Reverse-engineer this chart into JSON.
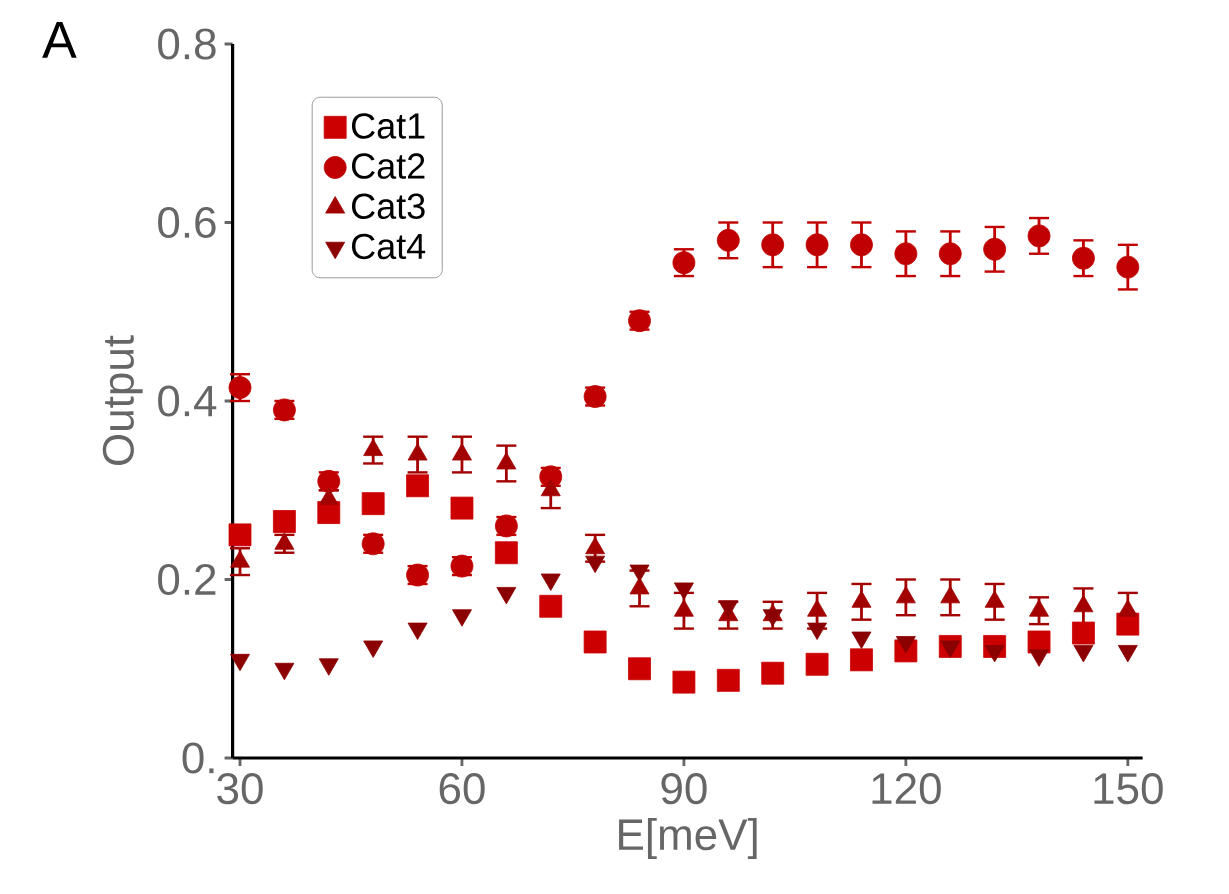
{
  "chart_data": {
    "type": "scatter",
    "annotations": [
      "A"
    ],
    "xlabel": "E[meV]",
    "ylabel": "Output",
    "x": [
      30,
      36,
      42,
      48,
      54,
      60,
      66,
      72,
      78,
      84,
      90,
      96,
      102,
      108,
      114,
      120,
      126,
      132,
      138,
      144,
      150
    ],
    "xlim": [
      29,
      152
    ],
    "ylim": [
      0,
      0.8
    ],
    "xticks": [
      30,
      60,
      90,
      120,
      150
    ],
    "yticks": [
      {
        "value": 0,
        "label": "0."
      },
      0.2,
      0.4,
      0.6,
      0.8
    ],
    "grid": false,
    "legend": "top left",
    "series": [
      {
        "name": "Cat1",
        "color": "#cc0000",
        "marker": "square",
        "values": [
          0.25,
          0.265,
          0.275,
          0.285,
          0.305,
          0.28,
          0.23,
          0.17,
          0.13,
          0.1,
          0.085,
          0.087,
          0.095,
          0.105,
          0.11,
          0.12,
          0.125,
          0.125,
          0.13,
          0.14,
          0.15
        ]
      },
      {
        "name": "Cat2",
        "color": "#c00000",
        "marker": "circle",
        "values": [
          0.415,
          0.39,
          0.31,
          0.24,
          0.205,
          0.215,
          0.26,
          0.315,
          0.405,
          0.49,
          0.555,
          0.58,
          0.575,
          0.575,
          0.575,
          0.565,
          0.565,
          0.57,
          0.585,
          0.56,
          0.55
        ],
        "errors": [
          0.015,
          0.01,
          0.01,
          0.01,
          0.01,
          0.01,
          0.01,
          0.01,
          0.01,
          0.01,
          0.015,
          0.02,
          0.025,
          0.025,
          0.025,
          0.025,
          0.025,
          0.025,
          0.02,
          0.02,
          0.025
        ]
      },
      {
        "name": "Cat3",
        "color": "#a30000",
        "marker": "triangle",
        "values": [
          0.22,
          0.24,
          0.29,
          0.345,
          0.34,
          0.34,
          0.33,
          0.3,
          0.235,
          0.19,
          0.165,
          0.16,
          0.16,
          0.165,
          0.175,
          0.18,
          0.18,
          0.175,
          0.165,
          0.17,
          0.165
        ],
        "errors": [
          0.015,
          0.01,
          0.01,
          0.015,
          0.02,
          0.02,
          0.02,
          0.02,
          0.015,
          0.02,
          0.02,
          0.015,
          0.015,
          0.02,
          0.02,
          0.02,
          0.02,
          0.02,
          0.015,
          0.02,
          0.02
        ]
      },
      {
        "name": "Cat4",
        "color": "#8b0000",
        "marker": "triangle-down",
        "values": [
          0.11,
          0.1,
          0.105,
          0.125,
          0.145,
          0.16,
          0.185,
          0.2,
          0.22,
          0.21,
          0.19,
          0.17,
          0.16,
          0.145,
          0.135,
          0.13,
          0.125,
          0.12,
          0.115,
          0.12,
          0.12
        ]
      }
    ]
  }
}
